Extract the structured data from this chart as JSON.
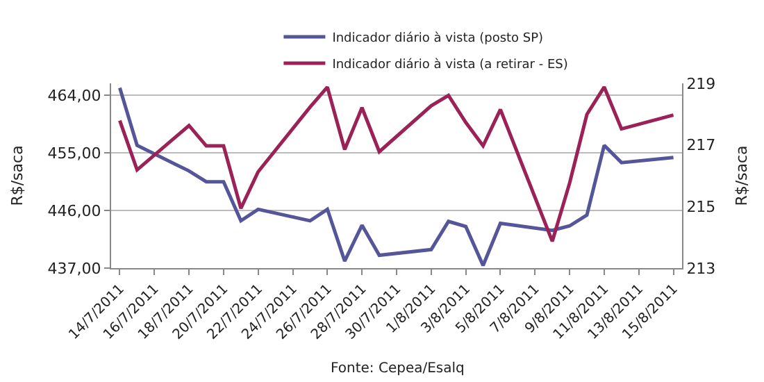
{
  "chart_data": {
    "type": "line",
    "ylabel": "R$/saca",
    "y2label": "R$/saca",
    "annotations": [
      "Fonte: Cepea/Esalq"
    ],
    "xlim": [
      "2011-07-13T12:00",
      "2011-08-15T12:00"
    ],
    "xticks": [
      {
        "value": "2011-07-14",
        "label": "14/7/2011"
      },
      {
        "value": "2011-07-16",
        "label": "16/7/2011"
      },
      {
        "value": "2011-07-18",
        "label": "18/7/2011"
      },
      {
        "value": "2011-07-20",
        "label": "20/7/2011"
      },
      {
        "value": "2011-07-22",
        "label": "22/7/2011"
      },
      {
        "value": "2011-07-24",
        "label": "24/7/2011"
      },
      {
        "value": "2011-07-26",
        "label": "26/7/2011"
      },
      {
        "value": "2011-07-28",
        "label": "28/7/2011"
      },
      {
        "value": "2011-07-30",
        "label": "30/7/2011"
      },
      {
        "value": "2011-08-01",
        "label": "1/8/2011"
      },
      {
        "value": "2011-08-03",
        "label": "3/8/2011"
      },
      {
        "value": "2011-08-05",
        "label": "5/8/2011"
      },
      {
        "value": "2011-08-07",
        "label": "7/8/2011"
      },
      {
        "value": "2011-08-09",
        "label": "9/8/2011"
      },
      {
        "value": "2011-08-11",
        "label": "11/8/2011"
      },
      {
        "value": "2011-08-13",
        "label": "13/8/2011"
      },
      {
        "value": "2011-08-15",
        "label": "15/8/2011"
      }
    ],
    "ylim": [
      437,
      465.9
    ],
    "yticks": [
      {
        "value": 437,
        "label": "437,00"
      },
      {
        "value": 446,
        "label": "446,00"
      },
      {
        "value": 455,
        "label": "455,00"
      },
      {
        "value": 464,
        "label": "464,00"
      }
    ],
    "y2lim": [
      213,
      219
    ],
    "y2ticks": [
      213,
      215,
      217,
      219
    ],
    "x": [
      "2011-07-14",
      "2011-07-15",
      "2011-07-18",
      "2011-07-19",
      "2011-07-20",
      "2011-07-21",
      "2011-07-22",
      "2011-07-25",
      "2011-07-26",
      "2011-07-27",
      "2011-07-28",
      "2011-07-29",
      "2011-08-01",
      "2011-08-02",
      "2011-08-03",
      "2011-08-04",
      "2011-08-05",
      "2011-08-08",
      "2011-08-09",
      "2011-08-10",
      "2011-08-11",
      "2011-08-12",
      "2011-08-15"
    ],
    "series": [
      {
        "name": "Indicador diário à vista (posto SP)",
        "color": "#55559a",
        "values": [
          465.2,
          456.2,
          452.2,
          450.5,
          450.5,
          444.4,
          446.2,
          444.4,
          446.2,
          438.1,
          443.7,
          439.0,
          439.9,
          444.3,
          443.5,
          437.4,
          444.0,
          442.9,
          443.6,
          445.3,
          456.2,
          453.5,
          454.3
        ]
      },
      {
        "name": "Indicador diário à vista (a retirar - ES)",
        "color": "#9b2257",
        "axis": "y2",
        "values": [
          217.79,
          216.19,
          217.63,
          216.97,
          216.97,
          214.94,
          216.13,
          218.23,
          218.88,
          216.85,
          218.21,
          216.78,
          218.27,
          218.61,
          217.73,
          216.97,
          218.15,
          213.87,
          215.76,
          217.99,
          218.88,
          217.52,
          217.97
        ]
      }
    ],
    "grid": "y",
    "legend": "top",
    "line_style": "solid",
    "marker": "none"
  }
}
